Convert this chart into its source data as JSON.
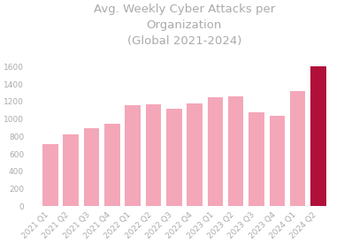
{
  "categories": [
    "2021 Q1",
    "2021 Q2",
    "2021 Q3",
    "2021 Q4",
    "2022 Q1",
    "2022 Q2",
    "2022 Q3",
    "2022 Q4",
    "2023 Q1",
    "2023 Q2",
    "2023 Q3",
    "2023 Q4",
    "2024 Q1",
    "2024 Q2"
  ],
  "values": [
    710,
    825,
    895,
    950,
    1160,
    1165,
    1115,
    1175,
    1255,
    1265,
    1080,
    1040,
    1320,
    1600
  ],
  "bar_colors": [
    "#f4a7b9",
    "#f4a7b9",
    "#f4a7b9",
    "#f4a7b9",
    "#f4a7b9",
    "#f4a7b9",
    "#f4a7b9",
    "#f4a7b9",
    "#f4a7b9",
    "#f4a7b9",
    "#f4a7b9",
    "#f4a7b9",
    "#f4a7b9",
    "#b0103a"
  ],
  "title": "Avg. Weekly Cyber Attacks per\nOrganization\n(Global 2021-2024)",
  "ylim": [
    0,
    1800
  ],
  "yticks": [
    0,
    200,
    400,
    600,
    800,
    1000,
    1200,
    1400,
    1600
  ],
  "title_fontsize": 9.5,
  "tick_fontsize": 6.5,
  "title_color": "#aaaaaa",
  "tick_color": "#aaaaaa",
  "background_color": "#ffffff"
}
